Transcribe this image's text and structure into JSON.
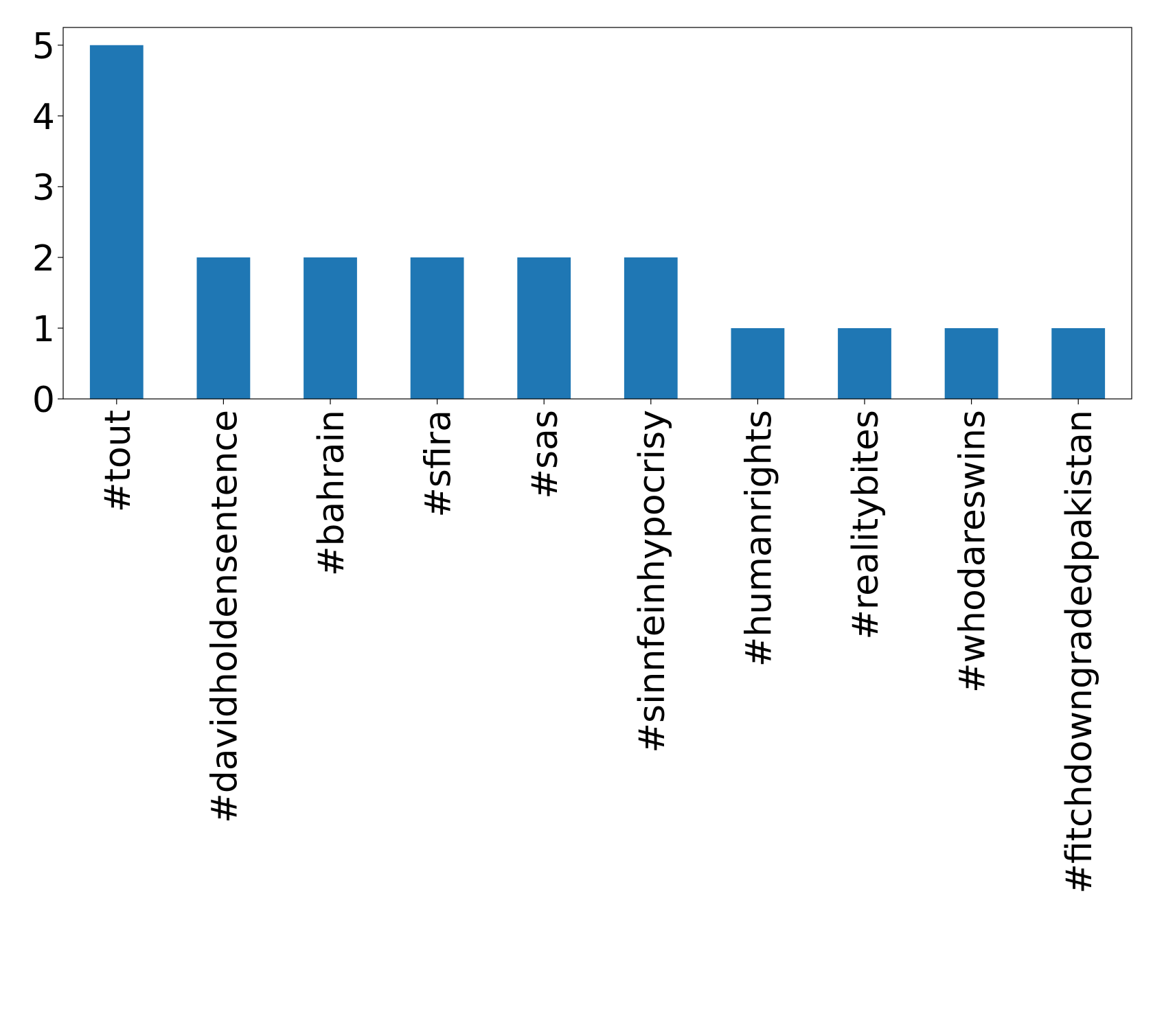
{
  "chart_data": {
    "type": "bar",
    "categories": [
      "#tout",
      "#davidholdensentence",
      "#bahrain",
      "#sfira",
      "#sas",
      "#sinnfeinhypocrisy",
      "#humanrights",
      "#realitybites",
      "#whodareswins",
      "#fitchdowngradedpakistan"
    ],
    "values": [
      5,
      2,
      2,
      2,
      2,
      2,
      1,
      1,
      1,
      1
    ],
    "color": "#1f77b4",
    "ylim": [
      0,
      5.25
    ],
    "yticks": [
      0,
      1,
      2,
      3,
      4,
      5
    ],
    "grid": false
  }
}
